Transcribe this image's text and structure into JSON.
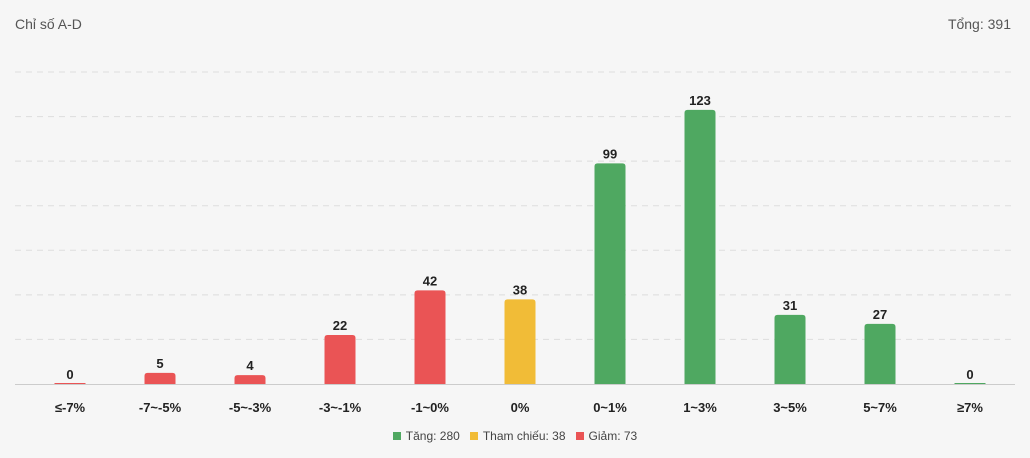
{
  "header": {
    "title": "Chỉ số A-D",
    "total_label": "Tổng: 391"
  },
  "colors": {
    "up": "#4fa861",
    "ref": "#f1bc37",
    "down": "#ea5455",
    "grid": "#dddddd",
    "axis": "#cccccc"
  },
  "legend": [
    {
      "label": "Tăng: 280",
      "color": "#4fa861"
    },
    {
      "label": "Tham chiếu: 38",
      "color": "#f1bc37"
    },
    {
      "label": "Giảm: 73",
      "color": "#ea5455"
    }
  ],
  "chart_data": {
    "type": "bar",
    "title": "Chỉ số A-D",
    "categories": [
      "≤-7%",
      "-7~-5%",
      "-5~-3%",
      "-3~-1%",
      "-1~0%",
      "0%",
      "0~1%",
      "1~3%",
      "3~5%",
      "5~7%",
      "≥7%"
    ],
    "values": [
      0,
      5,
      4,
      22,
      42,
      38,
      99,
      123,
      31,
      27,
      0
    ],
    "bar_colors": [
      "down",
      "down",
      "down",
      "down",
      "down",
      "ref",
      "up",
      "up",
      "up",
      "up",
      "up"
    ],
    "ylim": [
      0,
      140
    ],
    "grid": true,
    "grid_style": "dashed",
    "data_labels": true,
    "legend_position": "bottom-center"
  }
}
